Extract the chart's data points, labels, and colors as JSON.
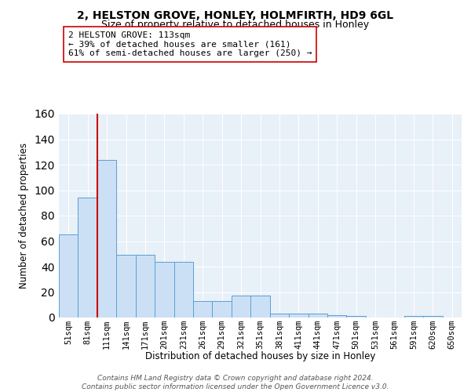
{
  "title": "2, HELSTON GROVE, HONLEY, HOLMFIRTH, HD9 6GL",
  "subtitle": "Size of property relative to detached houses in Honley",
  "xlabel": "Distribution of detached houses by size in Honley",
  "ylabel": "Number of detached properties",
  "bar_labels": [
    "51sqm",
    "81sqm",
    "111sqm",
    "141sqm",
    "171sqm",
    "201sqm",
    "231sqm",
    "261sqm",
    "291sqm",
    "321sqm",
    "351sqm",
    "381sqm",
    "411sqm",
    "441sqm",
    "471sqm",
    "501sqm",
    "531sqm",
    "561sqm",
    "591sqm",
    "620sqm",
    "650sqm"
  ],
  "bar_values": [
    65,
    94,
    124,
    49,
    49,
    44,
    44,
    13,
    13,
    17,
    17,
    3,
    3,
    3,
    2,
    1,
    0,
    0,
    1,
    1,
    0
  ],
  "bar_color": "#cce0f5",
  "bar_edge_color": "#5a9fd4",
  "vline_x_index": 2,
  "vline_color": "#cc0000",
  "annotation_line1": "2 HELSTON GROVE: 113sqm",
  "annotation_line2": "← 39% of detached houses are smaller (161)",
  "annotation_line3": "61% of semi-detached houses are larger (250) →",
  "annotation_box_color": "#ffffff",
  "annotation_box_edge": "#cc0000",
  "ylim": [
    0,
    160
  ],
  "yticks": [
    0,
    20,
    40,
    60,
    80,
    100,
    120,
    140,
    160
  ],
  "footnote_line1": "Contains HM Land Registry data © Crown copyright and database right 2024.",
  "footnote_line2": "Contains public sector information licensed under the Open Government Licence v3.0.",
  "bg_color": "#e8f0f8",
  "fig_bg_color": "#ffffff",
  "grid_color": "#ffffff",
  "title_fontsize": 10,
  "subtitle_fontsize": 9,
  "ylabel_fontsize": 8.5,
  "xlabel_fontsize": 8.5,
  "tick_fontsize": 7.5,
  "annotation_fontsize": 8,
  "footnote_fontsize": 6.5
}
